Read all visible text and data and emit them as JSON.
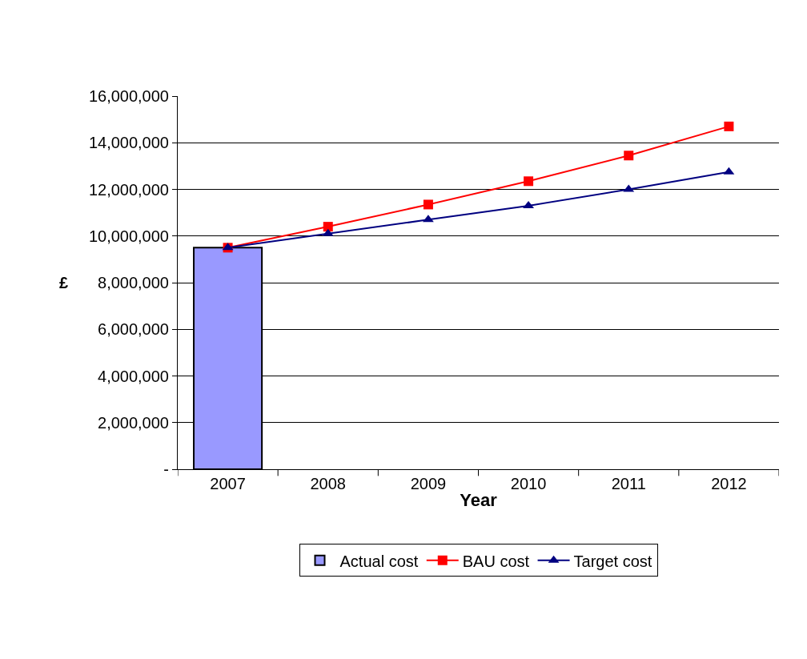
{
  "chart_data": {
    "type": "line",
    "xlabel": "Year",
    "ylabel": "£",
    "categories": [
      "2007",
      "2008",
      "2009",
      "2010",
      "2011",
      "2012"
    ],
    "series": [
      {
        "name": "Actual cost",
        "type": "bar",
        "color": "#9999ff",
        "values": [
          9500000,
          null,
          null,
          null,
          null,
          null
        ]
      },
      {
        "name": "BAU cost",
        "color": "#ff0000",
        "marker": "square",
        "values": [
          9500000,
          10400000,
          11350000,
          12350000,
          13450000,
          14700000
        ]
      },
      {
        "name": "Target cost",
        "color": "#000080",
        "marker": "triangle",
        "values": [
          9500000,
          10100000,
          10700000,
          11300000,
          12000000,
          12750000
        ]
      }
    ],
    "ylim": [
      0,
      16000000
    ],
    "yticks": [
      {
        "value": 0,
        "label": "-"
      },
      {
        "value": 2000000,
        "label": "2,000,000"
      },
      {
        "value": 4000000,
        "label": "4,000,000"
      },
      {
        "value": 6000000,
        "label": "6,000,000"
      },
      {
        "value": 8000000,
        "label": "8,000,000"
      },
      {
        "value": 10000000,
        "label": "10,000,000"
      },
      {
        "value": 12000000,
        "label": "12,000,000"
      },
      {
        "value": 14000000,
        "label": "14,000,000"
      },
      {
        "value": 16000000,
        "label": "16,000,000"
      }
    ],
    "grid": "y",
    "legend": "bottom"
  }
}
